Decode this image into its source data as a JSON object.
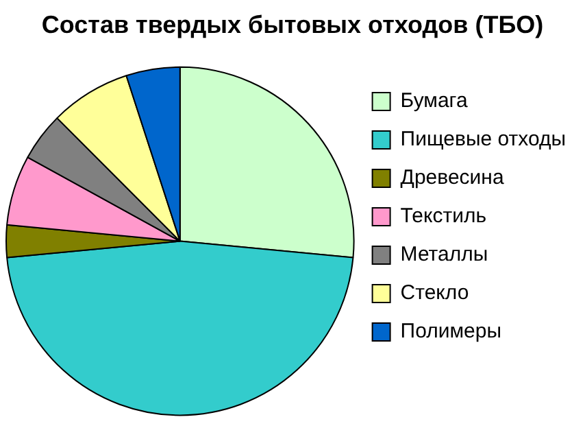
{
  "chart_data": {
    "type": "pie",
    "title": "Состав твердых бытовых отходов (ТБО)",
    "categories": [
      "Бумага",
      "Пищевые отходы",
      "Древесина",
      "Текстиль",
      "Металлы",
      "Стекло",
      "Полимеры"
    ],
    "values": [
      26.5,
      47,
      3,
      6.5,
      4.5,
      7.5,
      5
    ],
    "colors": [
      "#ccffcc",
      "#33cccc",
      "#808000",
      "#ff99cc",
      "#808080",
      "#ffff99",
      "#0066cc"
    ],
    "legend": "right"
  }
}
